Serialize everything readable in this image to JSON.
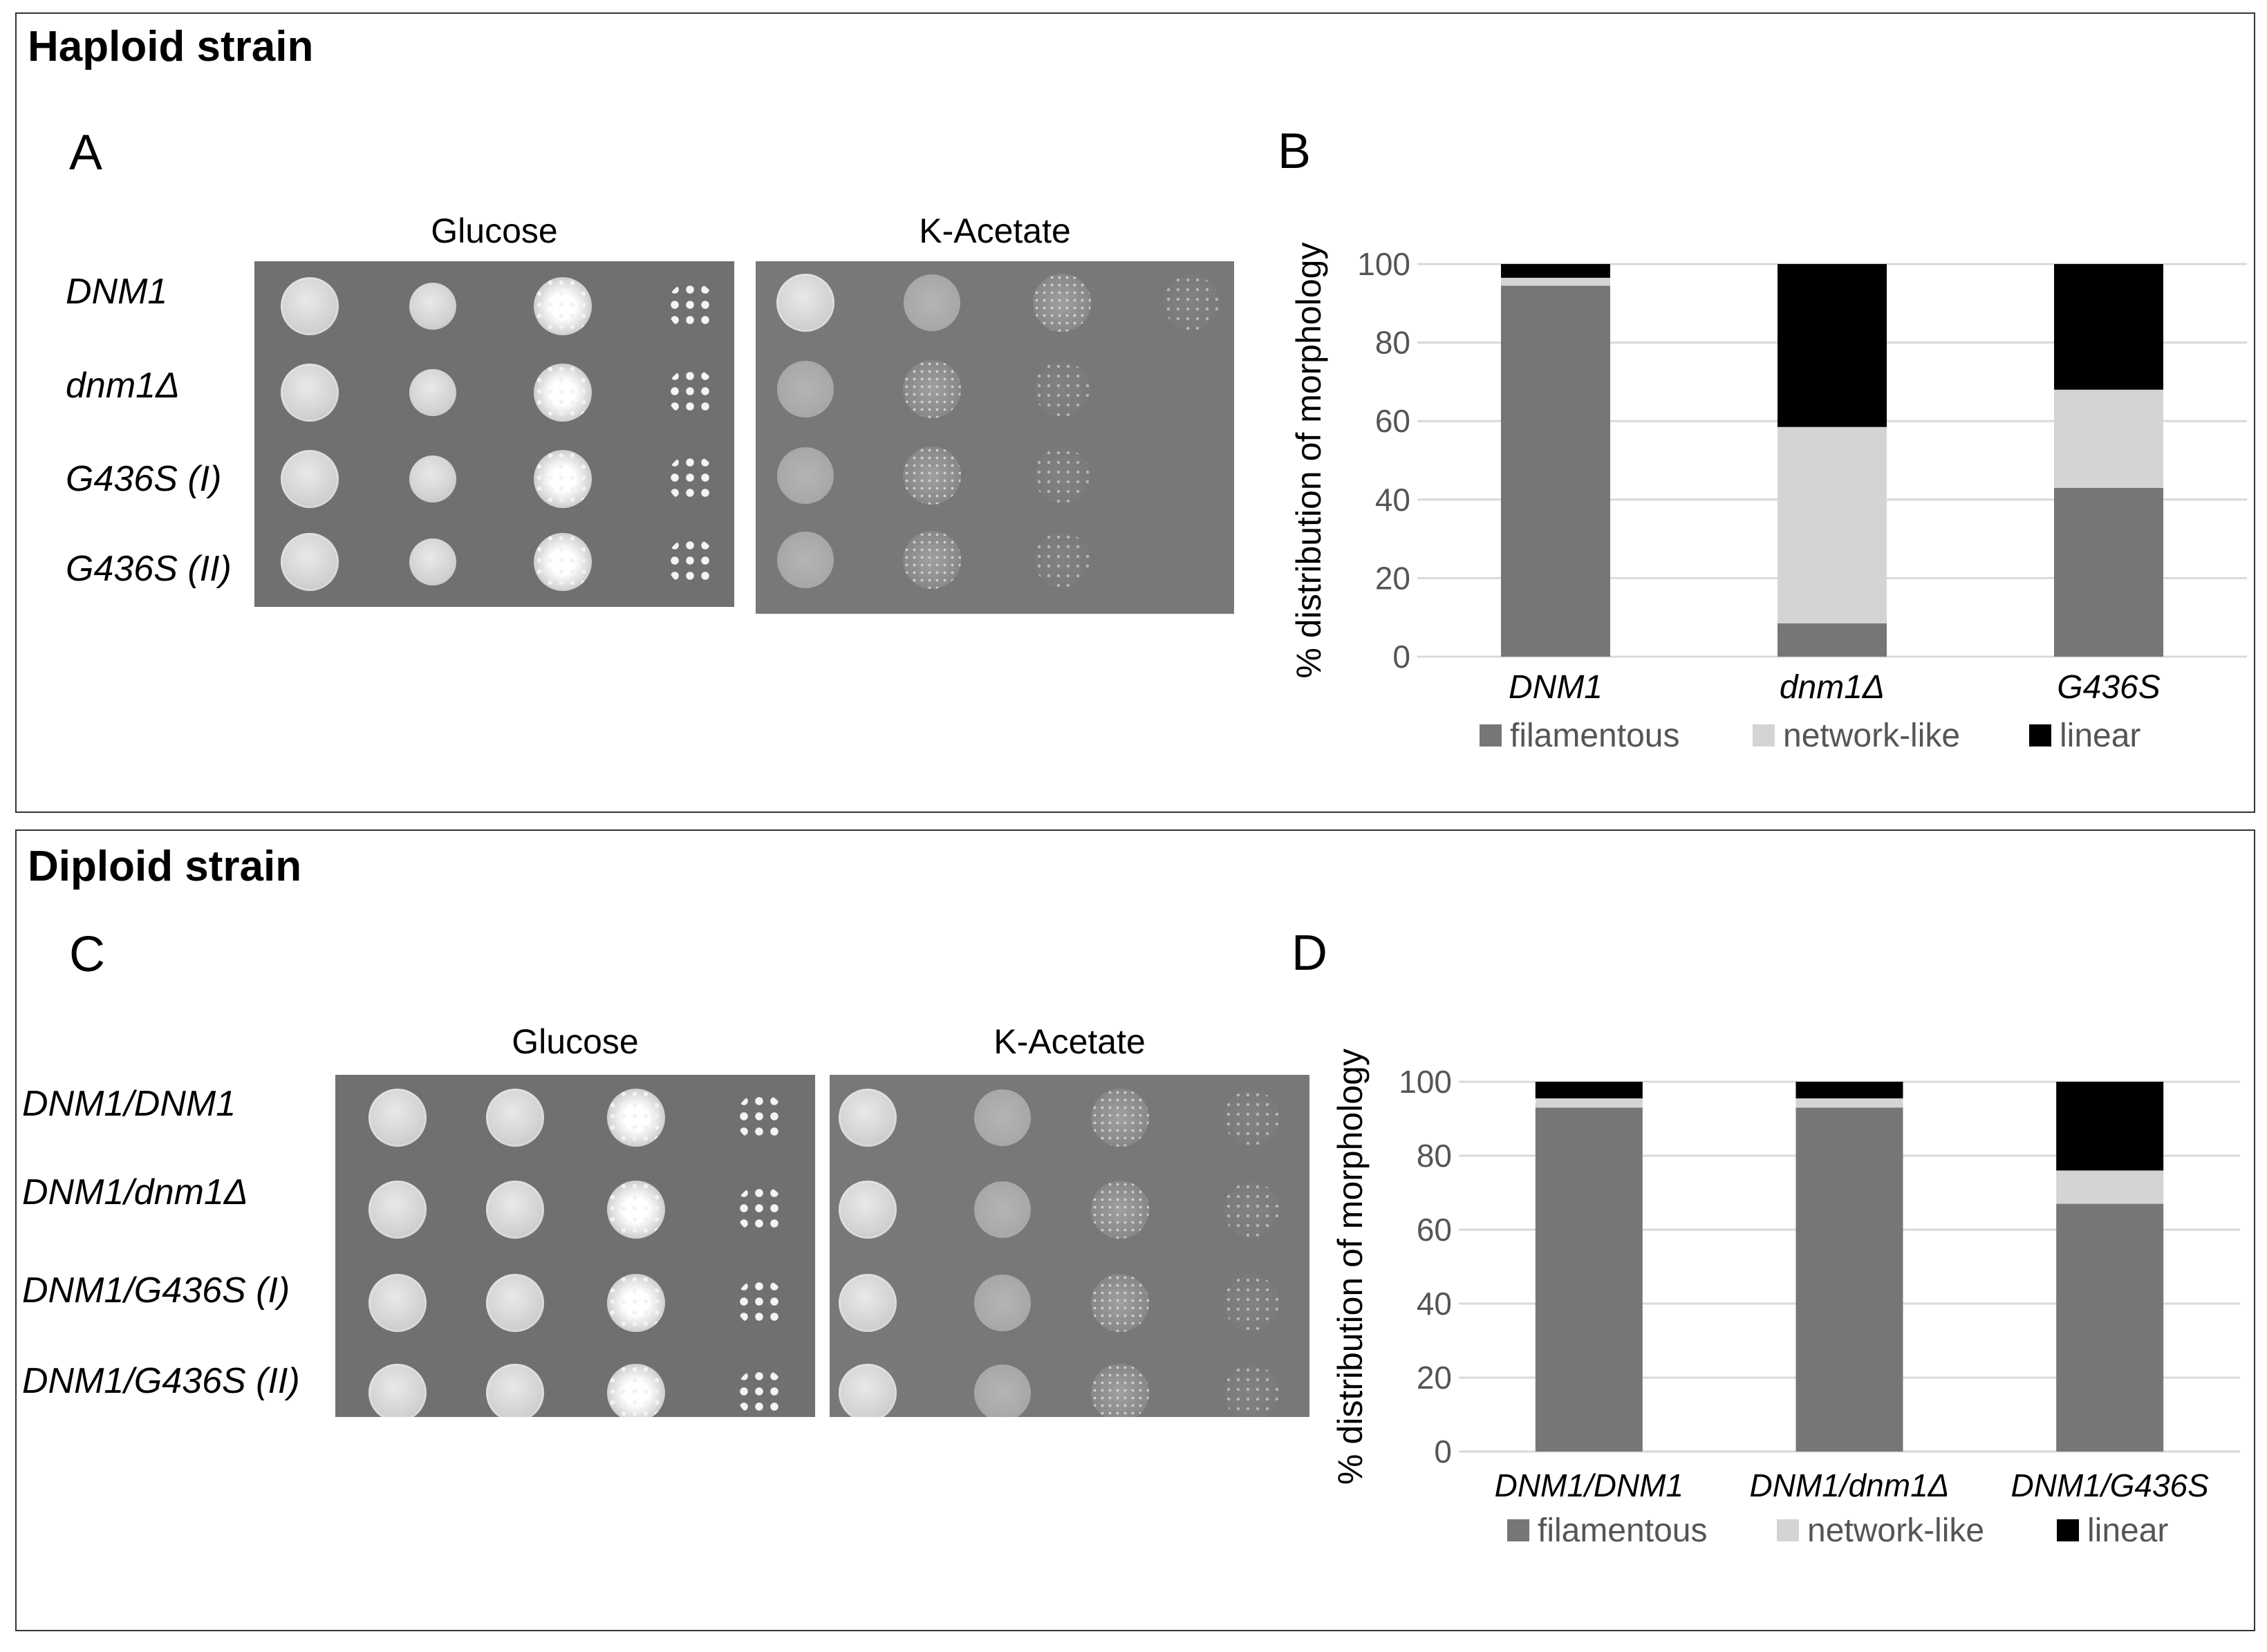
{
  "figure": {
    "haploid": {
      "section_title": "Haploid strain",
      "panel_a": {
        "letter": "A",
        "plate_titles": [
          "Glucose",
          "K-Acetate"
        ],
        "row_labels": [
          "DNM1",
          "dnm1Δ",
          "G436S (I)",
          "G436S (II)"
        ]
      },
      "panel_b": {
        "letter": "B"
      }
    },
    "diploid": {
      "section_title": "Diploid strain",
      "panel_c": {
        "letter": "C",
        "plate_titles": [
          "Glucose",
          "K-Acetate"
        ],
        "row_labels": [
          "DNM1/DNM1",
          "DNM1/dnm1Δ",
          "DNM1/G436S (I)",
          "DNM1/G436S (II)"
        ]
      },
      "panel_d": {
        "letter": "D"
      }
    }
  },
  "colors": {
    "filamentous": "#767676",
    "network_like": "#d4d4d4",
    "linear": "#000000",
    "gridline": "#d9d9d9"
  },
  "chart_data": [
    {
      "panel": "B",
      "type": "bar",
      "stacked": true,
      "categories": [
        "DNM1",
        "dnm1Δ",
        "G436S"
      ],
      "series": [
        {
          "name": "filamentous",
          "values": [
            94.5,
            8.5,
            43
          ]
        },
        {
          "name": "network-like",
          "values": [
            2,
            50,
            25
          ]
        },
        {
          "name": "linear",
          "values": [
            3.5,
            41.5,
            32
          ]
        }
      ],
      "ylabel": "% distribution of morphology",
      "xlabel": "",
      "ylim": [
        0,
        100
      ],
      "yticks": [
        "0",
        "20",
        "40",
        "60",
        "80",
        "100"
      ],
      "legend": "bottom"
    },
    {
      "panel": "D",
      "type": "bar",
      "stacked": true,
      "categories": [
        "DNM1/DNM1",
        "DNM1/dnm1Δ",
        "DNM1/G436S"
      ],
      "series": [
        {
          "name": "filamentous",
          "values": [
            93,
            93,
            67
          ]
        },
        {
          "name": "network-like",
          "values": [
            2.5,
            2.5,
            9
          ]
        },
        {
          "name": "linear",
          "values": [
            4.5,
            4.5,
            24
          ]
        }
      ],
      "ylabel": "% distribution of morphology",
      "xlabel": "",
      "ylim": [
        0,
        100
      ],
      "yticks": [
        "0",
        "20",
        "40",
        "60",
        "80",
        "100"
      ],
      "legend": "bottom"
    }
  ]
}
